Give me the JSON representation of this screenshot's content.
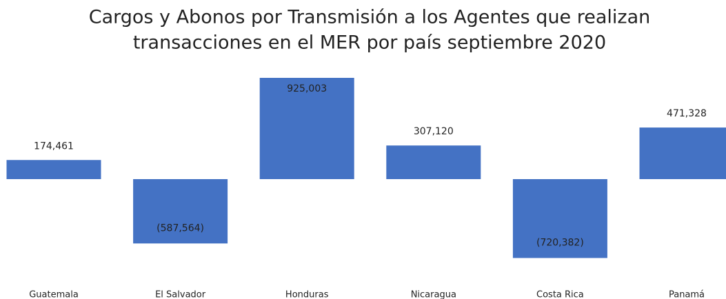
{
  "chart_data": {
    "type": "bar",
    "title": [
      "Cargos y Abonos por Transmisión a los Agentes que realizan",
      "transacciones en el MER por país septiembre 2020"
    ],
    "categories": [
      "Guatemala",
      "El Salvador",
      "Honduras",
      "Nicaragua",
      "Costa Rica",
      "Panamá"
    ],
    "values": [
      174461,
      -587564,
      925003,
      307120,
      -720382,
      471328
    ],
    "value_labels": [
      "174,461",
      "(587,564)",
      "925,003",
      "307,120",
      "(720,382)",
      "471,328"
    ],
    "color": "#4472c4"
  }
}
